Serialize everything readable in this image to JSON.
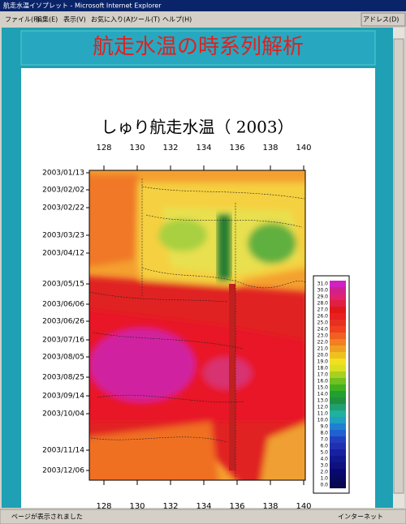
{
  "window": {
    "title": "航走水温イソプレット - Microsoft Internet Explorer",
    "menu": [
      "ファイル(F)",
      "編集(E)",
      "表示(V)",
      "お気に入り(A)",
      "ツール(T)",
      "ヘルプ(H)"
    ],
    "address": "アドレス(D)"
  },
  "page": {
    "heading": "航走水温の時系列解析"
  },
  "plot": {
    "title": "しゅり航走水温（ 2003）",
    "x_ticks": [
      "128",
      "130",
      "132",
      "134",
      "136",
      "138",
      "140"
    ],
    "dates": [
      "2003/01/13",
      "2003/02/02",
      "2003/02/22",
      "2003/03/23",
      "2003/04/12",
      "2003/05/15",
      "2003/06/06",
      "2003/06/26",
      "2003/07/16",
      "2003/08/05",
      "2003/08/25",
      "2003/09/14",
      "2003/10/04",
      "2003/11/14",
      "2003/12/06"
    ],
    "colorbar": [
      "31.0",
      "30.0",
      "29.0",
      "28.0",
      "27.0",
      "26.0",
      "25.0",
      "24.0",
      "23.0",
      "22.0",
      "21.0",
      "20.0",
      "19.0",
      "18.0",
      "17.0",
      "16.0",
      "15.0",
      "14.0",
      "13.0",
      "12.0",
      "11.0",
      "10.0",
      "9.0",
      "8.0",
      "7.0",
      "6.0",
      "5.0",
      "4.0",
      "3.0",
      "2.0",
      "1.0",
      "0.0"
    ]
  },
  "status": {
    "text": "ページが表示されました",
    "zone": "インターネット"
  }
}
